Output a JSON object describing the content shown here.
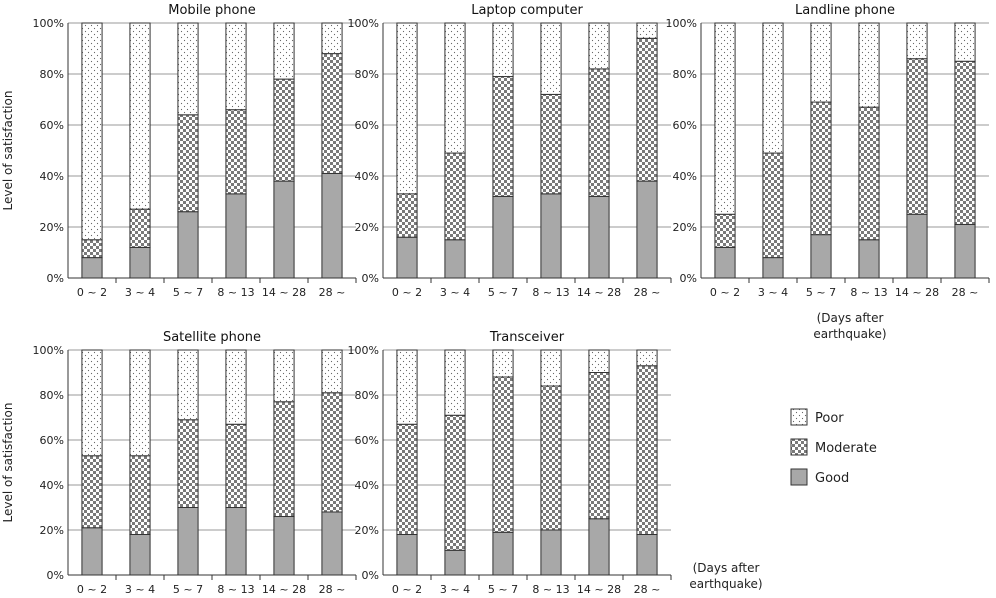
{
  "chart_data": [
    {
      "type": "bar",
      "stacked": true,
      "title": "Mobile phone",
      "ylabel": "Level of satisfaction",
      "ylim": [
        0,
        100
      ],
      "y_tick_labels": [
        "0%",
        "20%",
        "40%",
        "60%",
        "80%",
        "100%"
      ],
      "categories": [
        "0 ~ 2",
        "3 ~ 4",
        "5 ~ 7",
        "8 ~ 13",
        "14 ~ 28",
        "28 ~"
      ],
      "series": [
        {
          "name": "Good",
          "values": [
            8,
            12,
            26,
            33,
            38,
            41
          ]
        },
        {
          "name": "Moderate",
          "values": [
            7,
            15,
            38,
            33,
            40,
            47
          ]
        },
        {
          "name": "Poor",
          "values": [
            85,
            73,
            36,
            34,
            22,
            12
          ]
        }
      ]
    },
    {
      "type": "bar",
      "stacked": true,
      "title": "Laptop computer",
      "ylim": [
        0,
        100
      ],
      "y_tick_labels": [
        "0%",
        "20%",
        "40%",
        "60%",
        "80%",
        "100%"
      ],
      "categories": [
        "0 ~ 2",
        "3 ~ 4",
        "5 ~ 7",
        "8 ~ 13",
        "14 ~ 28",
        "28 ~"
      ],
      "series": [
        {
          "name": "Good",
          "values": [
            16,
            15,
            32,
            33,
            32,
            38
          ]
        },
        {
          "name": "Moderate",
          "values": [
            17,
            34,
            47,
            39,
            50,
            56
          ]
        },
        {
          "name": "Poor",
          "values": [
            67,
            51,
            21,
            28,
            18,
            6
          ]
        }
      ]
    },
    {
      "type": "bar",
      "stacked": true,
      "title": "Landline phone",
      "ylim": [
        0,
        100
      ],
      "y_tick_labels": [
        "0%",
        "20%",
        "40%",
        "60%",
        "80%",
        "100%"
      ],
      "categories": [
        "0 ~ 2",
        "3 ~ 4",
        "5 ~ 7",
        "8 ~ 13",
        "14 ~ 28",
        "28 ~"
      ],
      "series": [
        {
          "name": "Good",
          "values": [
            12,
            8,
            17,
            15,
            25,
            21
          ]
        },
        {
          "name": "Moderate",
          "values": [
            13,
            41,
            52,
            52,
            61,
            64
          ]
        },
        {
          "name": "Poor",
          "values": [
            75,
            51,
            31,
            33,
            14,
            15
          ]
        }
      ]
    },
    {
      "type": "bar",
      "stacked": true,
      "title": "Satellite phone",
      "ylabel": "Level of satisfaction",
      "ylim": [
        0,
        100
      ],
      "y_tick_labels": [
        "0%",
        "20%",
        "40%",
        "60%",
        "80%",
        "100%"
      ],
      "categories": [
        "0 ~ 2",
        "3 ~ 4",
        "5 ~ 7",
        "8 ~ 13",
        "14 ~ 28",
        "28 ~"
      ],
      "series": [
        {
          "name": "Good",
          "values": [
            21,
            18,
            30,
            30,
            26,
            28
          ]
        },
        {
          "name": "Moderate",
          "values": [
            32,
            35,
            39,
            37,
            51,
            53
          ]
        },
        {
          "name": "Poor",
          "values": [
            47,
            47,
            31,
            33,
            23,
            19
          ]
        }
      ]
    },
    {
      "type": "bar",
      "stacked": true,
      "title": "Transceiver",
      "ylim": [
        0,
        100
      ],
      "y_tick_labels": [
        "0%",
        "20%",
        "40%",
        "60%",
        "80%",
        "100%"
      ],
      "categories": [
        "0 ~ 2",
        "3 ~ 4",
        "5 ~ 7",
        "8 ~ 13",
        "14 ~ 28",
        "28 ~"
      ],
      "series": [
        {
          "name": "Good",
          "values": [
            18,
            11,
            19,
            20,
            25,
            18
          ]
        },
        {
          "name": "Moderate",
          "values": [
            49,
            60,
            69,
            64,
            65,
            75
          ]
        },
        {
          "name": "Poor",
          "values": [
            33,
            29,
            12,
            16,
            10,
            7
          ]
        }
      ]
    }
  ],
  "legend": {
    "placement": "right",
    "items": [
      {
        "name": "Poor",
        "pattern": "dots"
      },
      {
        "name": "Moderate",
        "pattern": "checker"
      },
      {
        "name": "Good",
        "pattern": "solid-gray"
      }
    ]
  },
  "x_axis_note": [
    "(Days after",
    "earthquake)"
  ],
  "colors": {
    "good": "#a8a8a8",
    "grid": "#999999",
    "bar_outline": "#333333"
  }
}
